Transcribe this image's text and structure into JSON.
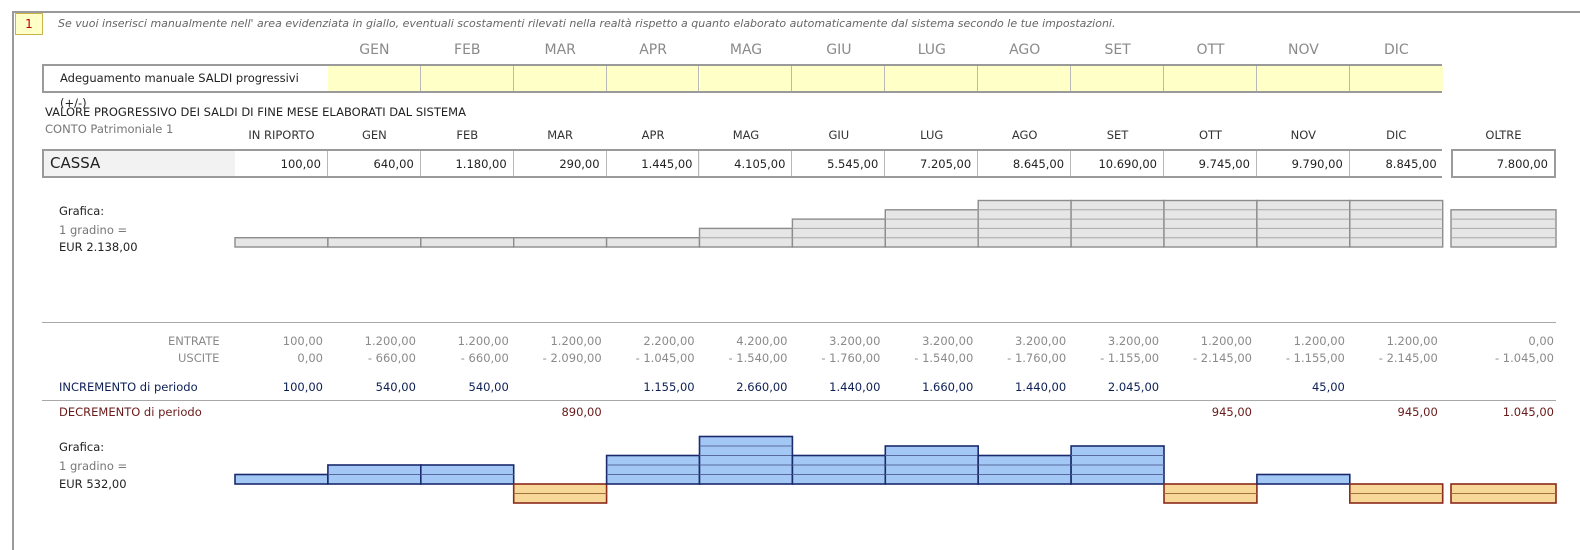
{
  "badge": "1",
  "note": "Se vuoi inserisci manualmente nell' area evidenziata in giallo, eventuali scostamenti rilevati nella realtà rispetto a quanto elaborato automaticamente dal sistema secondo le tue impostazioni.",
  "months": [
    "GEN",
    "FEB",
    "MAR",
    "APR",
    "MAG",
    "GIU",
    "LUG",
    "AGO",
    "SET",
    "OTT",
    "NOV",
    "DIC"
  ],
  "adjust": {
    "label": "Adeguamento manuale SALDI progressivi (+/-)",
    "values": [
      "",
      "",
      "",
      "",
      "",
      "",
      "",
      "",
      "",
      "",
      "",
      ""
    ]
  },
  "section_title": "VALORE PROGRESSIVO DEI SALDI DI FINE MESE ELABORATI DAL SISTEMA",
  "section_sub": "CONTO Patrimoniale 1",
  "columns": [
    "IN RIPORTO",
    "GEN",
    "FEB",
    "MAR",
    "APR",
    "MAG",
    "GIU",
    "LUG",
    "AGO",
    "SET",
    "OTT",
    "NOV",
    "DIC",
    "OLTRE"
  ],
  "cassa": {
    "label": "CASSA",
    "values": [
      "100,00",
      "640,00",
      "1.180,00",
      "290,00",
      "1.445,00",
      "4.105,00",
      "5.545,00",
      "7.205,00",
      "8.645,00",
      "10.690,00",
      "9.745,00",
      "9.790,00",
      "8.845,00",
      "7.800,00"
    ]
  },
  "graph1": {
    "title": "Grafica:",
    "step_label": "1 gradino =",
    "step_value": "EUR 2.138,00",
    "steps": [
      1,
      1,
      1,
      1,
      1,
      2,
      3,
      4,
      5,
      5,
      5,
      5,
      5,
      4
    ]
  },
  "flows": {
    "entrate_label": "ENTRATE",
    "uscite_label": "USCITE",
    "entrate": [
      "100,00",
      "1.200,00",
      "1.200,00",
      "1.200,00",
      "2.200,00",
      "4.200,00",
      "3.200,00",
      "3.200,00",
      "3.200,00",
      "3.200,00",
      "1.200,00",
      "1.200,00",
      "1.200,00",
      "0,00"
    ],
    "uscite": [
      "0,00",
      "- 660,00",
      "- 660,00",
      "- 2.090,00",
      "- 1.045,00",
      "- 1.540,00",
      "- 1.760,00",
      "- 1.540,00",
      "- 1.760,00",
      "- 1.155,00",
      "- 2.145,00",
      "- 1.155,00",
      "- 2.145,00",
      "- 1.045,00"
    ]
  },
  "incremento": {
    "label": "INCREMENTO di periodo",
    "values": [
      "100,00",
      "540,00",
      "540,00",
      "",
      "1.155,00",
      "2.660,00",
      "1.440,00",
      "1.660,00",
      "1.440,00",
      "2.045,00",
      "",
      "45,00",
      "",
      ""
    ]
  },
  "decremento": {
    "label": "DECREMENTO di periodo",
    "values": [
      "",
      "",
      "",
      "890,00",
      "",
      "",
      "",
      "",
      "",
      "",
      "945,00",
      "",
      "945,00",
      "1.045,00"
    ]
  },
  "graph2": {
    "title": "Grafica:",
    "step_label": "1 gradino =",
    "step_value": "EUR 532,00",
    "steps": [
      1,
      2,
      2,
      -2,
      3,
      5,
      3,
      4,
      3,
      4,
      -2,
      1,
      -2,
      -2
    ]
  },
  "colors": {
    "yellow": "#ffffc8",
    "gridgrey": "#e6e6e6",
    "pos_fill": "#a4c8f6",
    "pos_stroke": "#1a2a6c",
    "neg_fill": "#f7d898",
    "neg_stroke": "#8b2a1a"
  }
}
